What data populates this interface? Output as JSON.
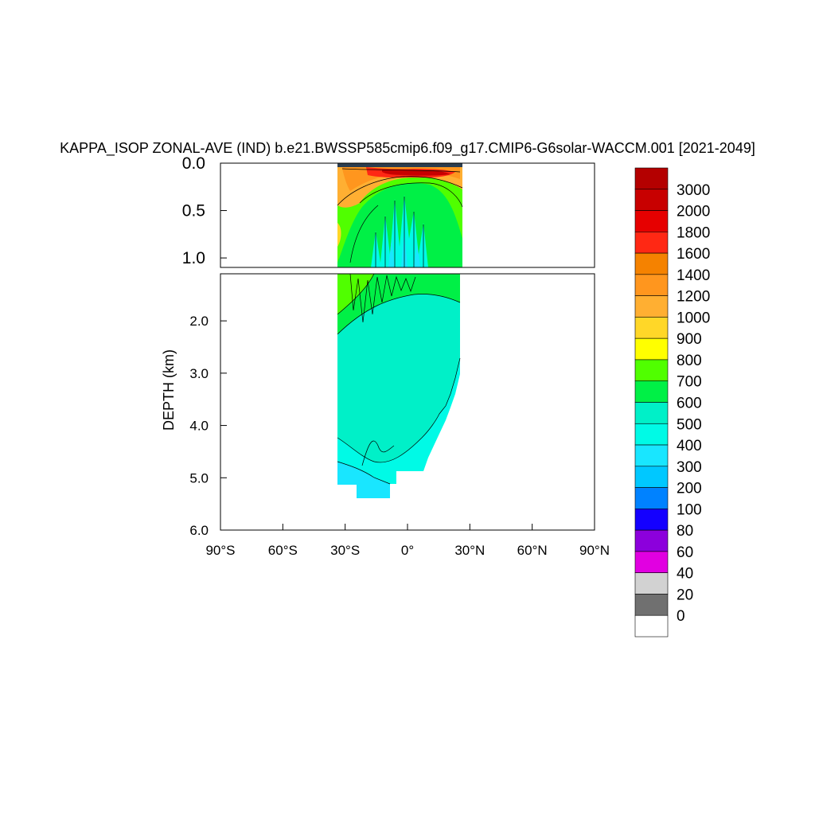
{
  "chart_data": {
    "type": "heatmap",
    "title": "KAPPA_ISOP ZONAL-AVE (IND) b.e21.BWSSP585cmip6.f09_g17.CMIP6-G6solar-WACCM.001 [2021-2049]",
    "ylabel": "DEPTH (km)",
    "xlabel": "",
    "x_range": [
      -90,
      90
    ],
    "x_ticks": [
      {
        "value": -90,
        "label": "90°S"
      },
      {
        "value": -60,
        "label": "60°S"
      },
      {
        "value": -30,
        "label": "30°S"
      },
      {
        "value": 0,
        "label": "0°"
      },
      {
        "value": 30,
        "label": "30°N"
      },
      {
        "value": 60,
        "label": "60°N"
      },
      {
        "value": 90,
        "label": "90°N"
      }
    ],
    "upper_panel": {
      "y_range": [
        0.0,
        1.1
      ],
      "y_ticks": [
        {
          "value": 0.0,
          "label": "0.0"
        },
        {
          "value": 0.5,
          "label": "0.5"
        },
        {
          "value": 1.0,
          "label": "1.0"
        }
      ]
    },
    "lower_panel": {
      "y_range": [
        1.1,
        6.0
      ],
      "y_ticks": [
        {
          "value": 2.0,
          "label": "2.0"
        },
        {
          "value": 3.0,
          "label": "3.0"
        },
        {
          "value": 4.0,
          "label": "4.0"
        },
        {
          "value": 5.0,
          "label": "5.0"
        },
        {
          "value": 6.0,
          "label": "6.0"
        }
      ]
    },
    "data_extent": {
      "lat_min": -35,
      "lat_max": 25,
      "max_depth_km": 5.4
    },
    "colorbar": {
      "labels": [
        "3000",
        "2000",
        "1800",
        "1600",
        "1400",
        "1200",
        "1000",
        "900",
        "800",
        "700",
        "600",
        "500",
        "400",
        "300",
        "200",
        "100",
        "80",
        "60",
        "40",
        "20",
        "0"
      ],
      "colors": [
        "#b40000",
        "#c80000",
        "#e60000",
        "#ff2814",
        "#f58200",
        "#ff961e",
        "#ffaf32",
        "#ffd728",
        "#ffff00",
        "#50ff00",
        "#00f046",
        "#00f0c8",
        "#00fae6",
        "#19e6ff",
        "#00c8ff",
        "#0082ff",
        "#1400ff",
        "#8c00dc",
        "#e100e1",
        "#d2d2d2",
        "#707070",
        "#ffffff"
      ]
    }
  }
}
